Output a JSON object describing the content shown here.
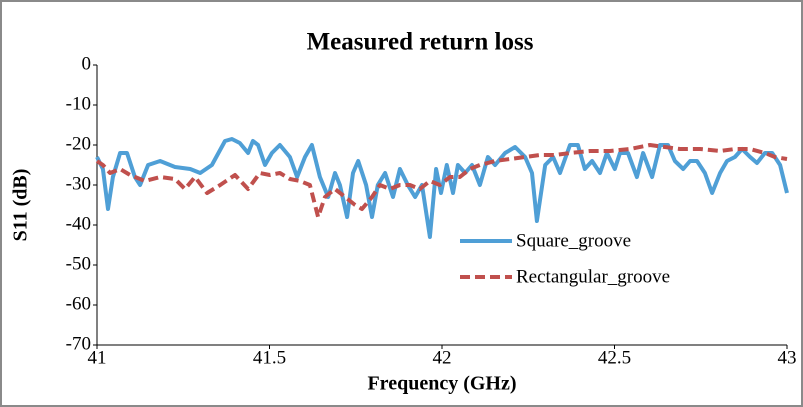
{
  "chart_data": {
    "type": "line",
    "title": "Measured return loss",
    "xlabel": "Frequency (GHz)",
    "ylabel": "S11 (dB)",
    "xlim": [
      41,
      43
    ],
    "ylim": [
      -70,
      0
    ],
    "xticks": [
      41,
      41.5,
      42,
      42.5,
      43
    ],
    "yticks": [
      0,
      -10,
      -20,
      -30,
      -40,
      -50,
      -60,
      -70
    ],
    "grid": false,
    "legend": "lower right",
    "series": [
      {
        "name": "Square_groove",
        "color": "#4f9fd6",
        "linestyle": "solid",
        "x": [
          41.0,
          41.017,
          41.032,
          41.046,
          41.067,
          41.087,
          41.11,
          41.125,
          41.148,
          41.183,
          41.226,
          41.27,
          41.299,
          41.333,
          41.371,
          41.391,
          41.414,
          41.438,
          41.452,
          41.467,
          41.487,
          41.507,
          41.53,
          41.559,
          41.58,
          41.603,
          41.623,
          41.646,
          41.67,
          41.69,
          41.704,
          41.725,
          41.742,
          41.757,
          41.78,
          41.797,
          41.814,
          41.835,
          41.858,
          41.878,
          41.901,
          41.922,
          41.942,
          41.965,
          41.983,
          41.997,
          42.014,
          42.032,
          42.046,
          42.067,
          42.087,
          42.11,
          42.133,
          42.154,
          42.183,
          42.212,
          42.241,
          42.261,
          42.275,
          42.299,
          42.322,
          42.342,
          42.371,
          42.394,
          42.414,
          42.435,
          42.458,
          42.478,
          42.501,
          42.516,
          42.539,
          42.565,
          42.583,
          42.609,
          42.632,
          42.655,
          42.675,
          42.699,
          42.719,
          42.739,
          42.762,
          42.783,
          42.806,
          42.826,
          42.849,
          42.87,
          42.893,
          42.913,
          42.936,
          42.957,
          42.98,
          43.0
        ],
        "values": [
          -23,
          -26,
          -36,
          -28,
          -22,
          -22,
          -28,
          -30,
          -25,
          -24,
          -25.5,
          -26,
          -27,
          -25,
          -19,
          -18.5,
          -19.5,
          -22,
          -19,
          -20,
          -25,
          -22,
          -20,
          -23,
          -28,
          -23,
          -20,
          -28,
          -33,
          -27,
          -30,
          -38,
          -27,
          -24,
          -30,
          -38,
          -30,
          -27,
          -33,
          -26,
          -30,
          -33,
          -30,
          -43,
          -26,
          -32,
          -25,
          -32,
          -25,
          -27,
          -25,
          -30,
          -23,
          -25,
          -22,
          -20.5,
          -23,
          -27,
          -39,
          -25,
          -23,
          -27,
          -20,
          -20,
          -26,
          -24,
          -27,
          -22,
          -26,
          -22,
          -22,
          -28,
          -22,
          -28,
          -20,
          -20,
          -24,
          -26,
          -24,
          -24,
          -27,
          -32,
          -27,
          -24,
          -23,
          -21,
          -23,
          -24.5,
          -22,
          -22,
          -25,
          -32
        ]
      },
      {
        "name": "Rectangular_groove",
        "color": "#c0504d",
        "linestyle": "dashed",
        "x": [
          41.0,
          41.017,
          41.038,
          41.067,
          41.096,
          41.139,
          41.183,
          41.226,
          41.255,
          41.284,
          41.319,
          41.357,
          41.4,
          41.438,
          41.472,
          41.501,
          41.53,
          41.559,
          41.588,
          41.617,
          41.641,
          41.661,
          41.69,
          41.719,
          41.748,
          41.768,
          41.797,
          41.82,
          41.849,
          41.878,
          41.907,
          41.936,
          41.965,
          41.994,
          42.023,
          42.052,
          42.081,
          42.11,
          42.154,
          42.197,
          42.241,
          42.284,
          42.328,
          42.371,
          42.429,
          42.487,
          42.545,
          42.603,
          42.646,
          42.69,
          42.748,
          42.806,
          42.849,
          42.893,
          42.936,
          42.965,
          43.0
        ],
        "values": [
          -24,
          -25,
          -27,
          -26,
          -27.5,
          -29,
          -28,
          -28.5,
          -31,
          -28,
          -32,
          -30,
          -27.5,
          -31,
          -27,
          -27.5,
          -27,
          -28.5,
          -29,
          -30,
          -38,
          -33,
          -31,
          -33,
          -35,
          -36,
          -33,
          -30,
          -31,
          -30,
          -30,
          -31,
          -29,
          -30,
          -28,
          -28,
          -26,
          -25,
          -24,
          -23.5,
          -23,
          -22.5,
          -22.5,
          -22,
          -21.5,
          -21.5,
          -21,
          -20,
          -20.5,
          -21,
          -21,
          -21.5,
          -21,
          -21,
          -22,
          -23,
          -23.5
        ]
      }
    ]
  }
}
